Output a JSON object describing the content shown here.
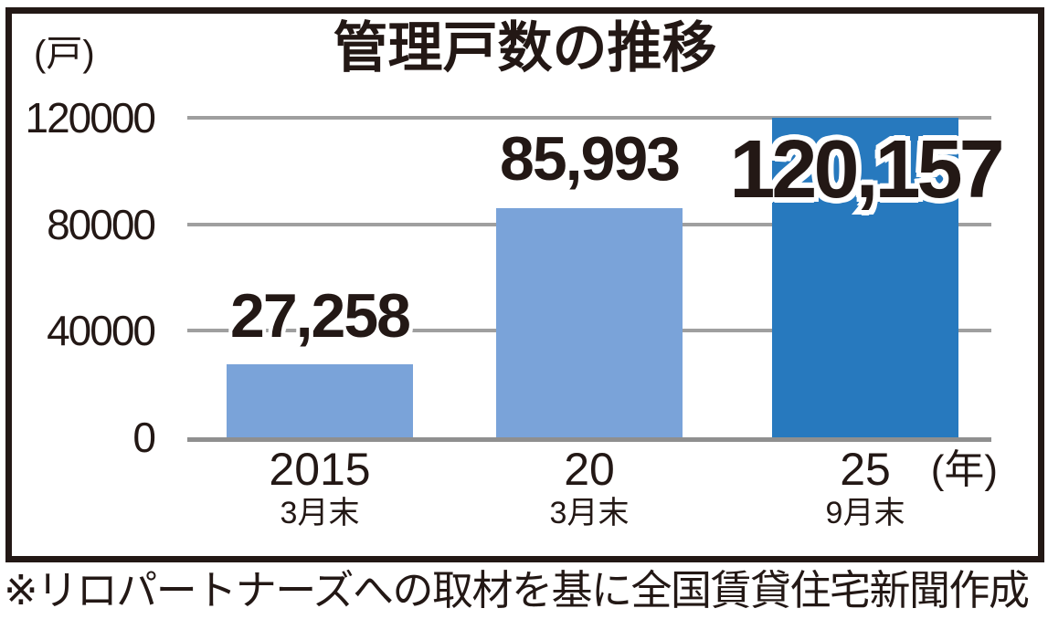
{
  "chart_data": {
    "type": "bar",
    "title": "管理戸数の推移",
    "unit_label": "(戸)",
    "xaxis_suffix": "(年)",
    "categories": [
      {
        "year": "2015",
        "period": "3月末"
      },
      {
        "year": "20",
        "period": "3月末"
      },
      {
        "year": "25",
        "period": "9月末"
      }
    ],
    "values": [
      27258,
      85993,
      120157
    ],
    "value_labels": [
      "27,258",
      "85,993",
      "120,157"
    ],
    "ylim": [
      0,
      120000
    ],
    "yticks": [
      0,
      40000,
      80000,
      120000
    ],
    "ytick_labels": [
      "0",
      "40000",
      "80000",
      "120000"
    ],
    "grid": true,
    "legend": "none",
    "bar_colors": [
      "#7aa3d9",
      "#7aa3d9",
      "#2779be"
    ],
    "highlight_index": 2,
    "grid_color": "#9f9f9f",
    "ink_color": "#231815"
  },
  "footer": {
    "note": "※リロパートナーズへの取材を基に全国賃貸住宅新聞作成"
  }
}
